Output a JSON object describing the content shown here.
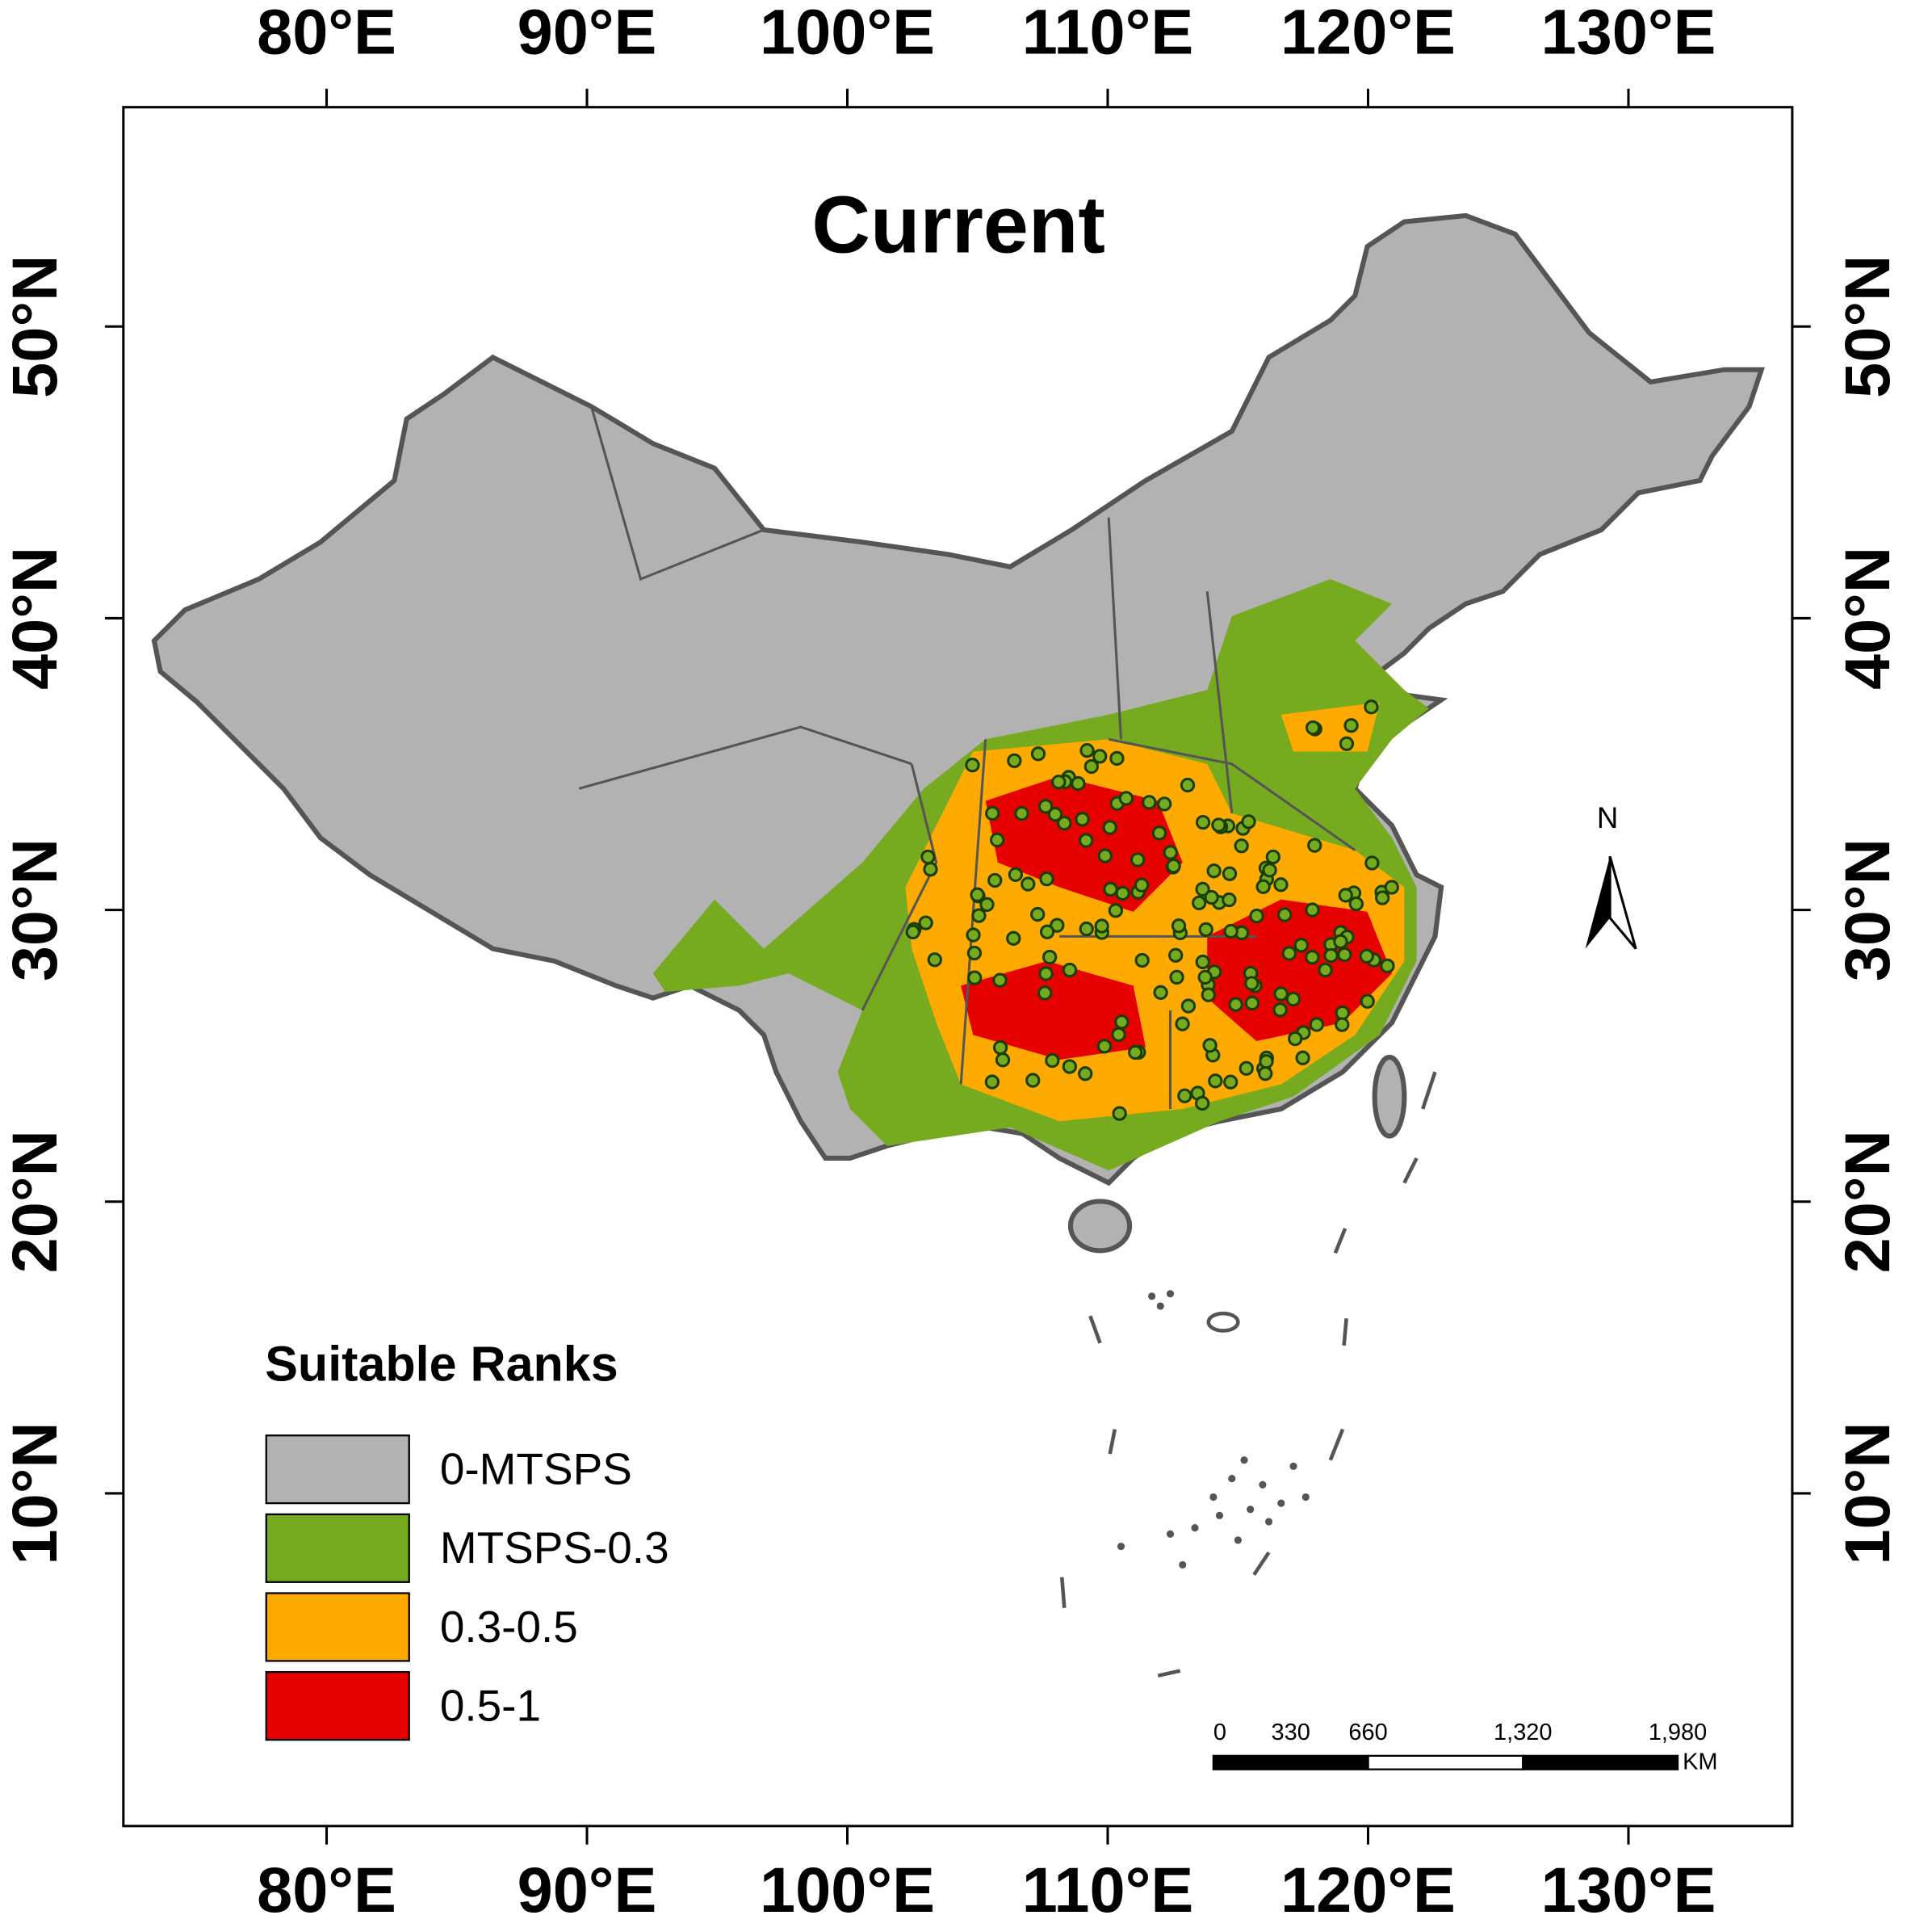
{
  "map": {
    "title": "Current",
    "lon_ticks": [
      {
        "value": 80,
        "label": "80°E"
      },
      {
        "value": 90,
        "label": "90°E"
      },
      {
        "value": 100,
        "label": "100°E"
      },
      {
        "value": 110,
        "label": "110°E"
      },
      {
        "value": 120,
        "label": "120°E"
      },
      {
        "value": 130,
        "label": "130°E"
      }
    ],
    "lat_ticks": [
      {
        "value": 10,
        "label": "10°N"
      },
      {
        "value": 20,
        "label": "20°N"
      },
      {
        "value": 30,
        "label": "30°N"
      },
      {
        "value": 40,
        "label": "40°N"
      },
      {
        "value": 50,
        "label": "50°N"
      }
    ],
    "legend": {
      "title": "Suitable Ranks",
      "items": [
        {
          "label": "0-MTSPS",
          "color": "#b2b2b2"
        },
        {
          "label": "MTSPS-0.3",
          "color": "#77ab1f"
        },
        {
          "label": "0.3-0.5",
          "color": "#ffaa00"
        },
        {
          "label": "0.5-1",
          "color": "#e60000"
        }
      ]
    },
    "scale_bar": {
      "ticks": [
        0,
        330,
        660,
        {
          "value": 1320,
          "label": "1,320"
        },
        {
          "value": 1980,
          "label": "1,980"
        }
      ],
      "unit": "KM"
    },
    "north": "N"
  }
}
